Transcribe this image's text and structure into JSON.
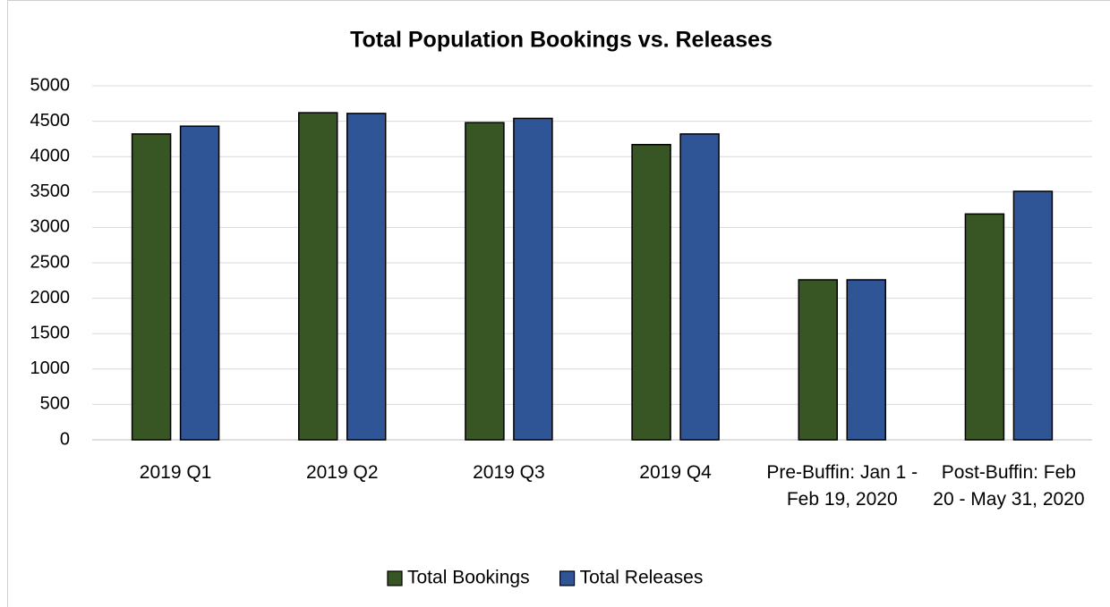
{
  "chart_data": {
    "type": "bar",
    "title": "Total Population Bookings vs. Releases",
    "categories": [
      "2019 Q1",
      "2019 Q2",
      "2019 Q3",
      "2019 Q4",
      "Pre-Buffin: Jan 1 - Feb 19, 2020",
      "Post-Buffin: Feb 20 - May 31, 2020"
    ],
    "series": [
      {
        "name": "Total Bookings",
        "color": "#375623",
        "values": [
          4320,
          4620,
          4480,
          4170,
          2260,
          3190
        ]
      },
      {
        "name": "Total Releases",
        "color": "#2f5597",
        "values": [
          4430,
          4610,
          4540,
          4320,
          2260,
          3510
        ]
      }
    ],
    "ylim": [
      0,
      5000
    ],
    "yticks": [
      0,
      500,
      1000,
      1500,
      2000,
      2500,
      3000,
      3500,
      4000,
      4500,
      5000
    ],
    "grid": true,
    "legend": "bottom"
  }
}
